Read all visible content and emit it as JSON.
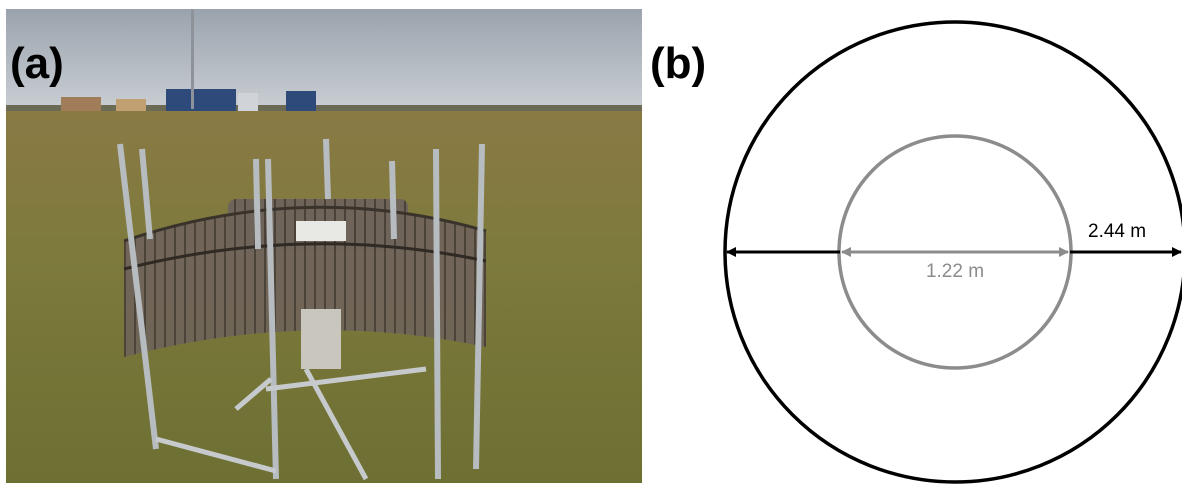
{
  "panel_a": {
    "label": "(a)"
  },
  "panel_b": {
    "label": "(b)",
    "outer_diameter_label": "2.44 m",
    "inner_diameter_label": "1.22 m",
    "colors": {
      "outer": "#000000",
      "inner": "#8c8c8c"
    }
  }
}
